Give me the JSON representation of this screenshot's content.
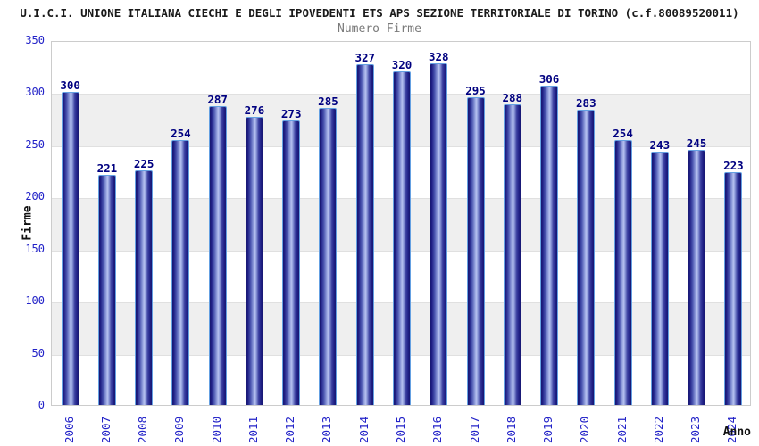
{
  "chart_data": {
    "type": "bar",
    "title": "U.I.C.I. UNIONE ITALIANA CIECHI E DEGLI IPOVEDENTI ETS APS SEZIONE TERRITORIALE DI TORINO (c.f.80089520011)",
    "subtitle": "Numero Firme",
    "xlabel": "Anno",
    "ylabel": "Firme",
    "categories": [
      "2006",
      "2007",
      "2008",
      "2009",
      "2010",
      "2011",
      "2012",
      "2013",
      "2014",
      "2015",
      "2016",
      "2017",
      "2018",
      "2019",
      "2020",
      "2021",
      "2022",
      "2023",
      "2024"
    ],
    "values": [
      300,
      221,
      225,
      254,
      287,
      276,
      273,
      285,
      327,
      320,
      328,
      295,
      288,
      306,
      283,
      254,
      243,
      245,
      223
    ],
    "ylim": [
      0,
      350
    ],
    "yticks": [
      0,
      50,
      100,
      150,
      200,
      250,
      300,
      350
    ],
    "legend": "none",
    "grid": "alternating horizontal bands every 50 units",
    "value_labels_shown": true,
    "colors": {
      "bar_edge": "#64a0e2",
      "bar_dark": "#171770",
      "bar_light": "#b7c2f0",
      "tick_label": "#2323c8",
      "value_label": "#000080",
      "band_gray": "#efefef",
      "plot_border": "#cccccc",
      "title": "#1a1a1a",
      "subtitle": "#7a7a7a"
    }
  }
}
